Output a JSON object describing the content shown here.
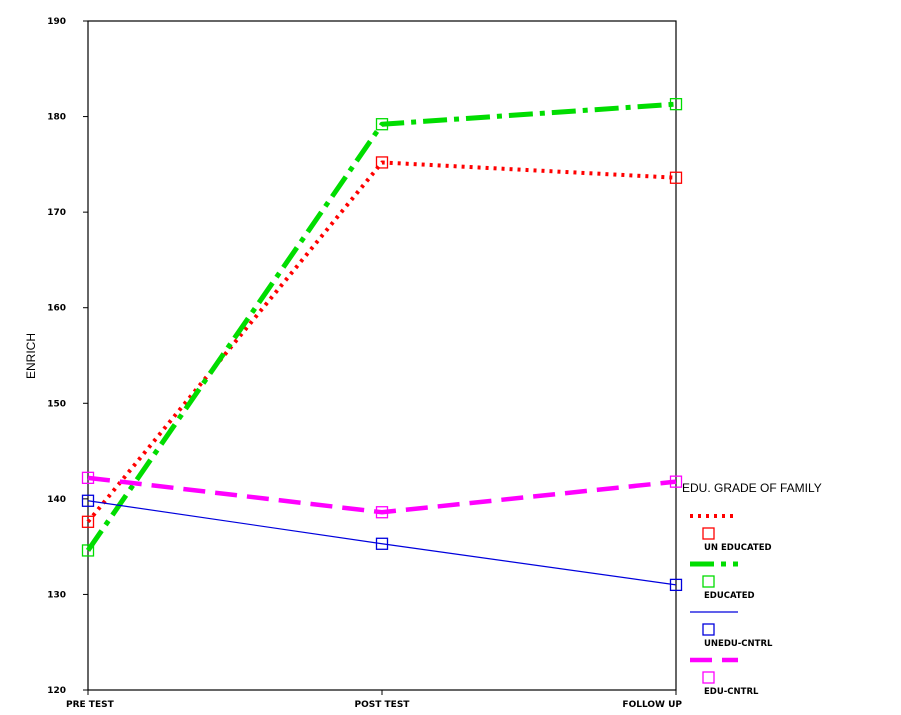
{
  "chart_data": {
    "type": "line",
    "x": [
      "PRE TEST",
      "POST TEST",
      "FOLLOW UP"
    ],
    "ylabel": "ENRICH",
    "xlabel": "",
    "ylim": [
      120,
      190
    ],
    "yticks": [
      "120",
      "130",
      "140",
      "150",
      "160",
      "170",
      "180",
      "190"
    ],
    "legend_title": "EDU. GRADE OF FAMILY",
    "legend_position": "right",
    "series": [
      {
        "name": "UN EDUCATED",
        "values": [
          137.6,
          175.2,
          173.6
        ],
        "color": "#ff0000",
        "style": "dotted"
      },
      {
        "name": "EDUCATED",
        "values": [
          134.6,
          179.2,
          181.3
        ],
        "color": "#00dd00",
        "style": "dash-dot"
      },
      {
        "name": "UNEDU-CNTRL",
        "values": [
          139.8,
          135.3,
          131.0
        ],
        "color": "#0000dd",
        "style": "solid"
      },
      {
        "name": "EDU-CNTRL",
        "values": [
          142.2,
          138.6,
          141.8
        ],
        "color": "#ff00ff",
        "style": "dashed"
      }
    ]
  }
}
